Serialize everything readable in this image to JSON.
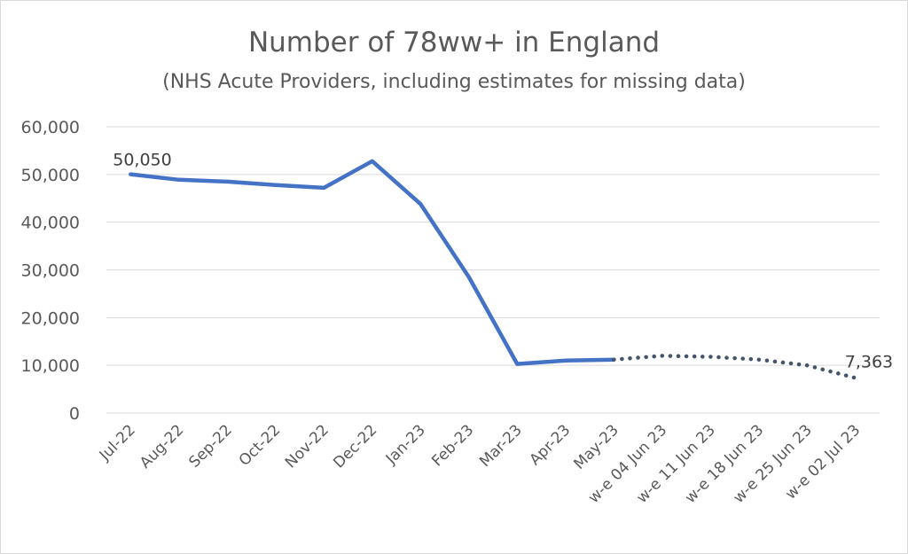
{
  "chart_data": {
    "type": "line",
    "title": "Number of 78ww+ in England",
    "subtitle": "(NHS Acute Providers, including estimates for missing data)",
    "xlabel": "",
    "ylabel": "",
    "ylim": [
      0,
      60000
    ],
    "yticks": [
      "60,000",
      "50,000",
      "40,000",
      "30,000",
      "20,000",
      "10,000",
      "0"
    ],
    "ytick_values": [
      60000,
      50000,
      40000,
      30000,
      20000,
      10000,
      0
    ],
    "grid": true,
    "legend": "none",
    "categories": [
      "Jul-22",
      "Aug-22",
      "Sep-22",
      "Oct-22",
      "Nov-22",
      "Dec-22",
      "Jan-23",
      "Feb-23",
      "Mar-23",
      "Apr-23",
      "May-23",
      "w-e 04 Jun 23",
      "w-e 11 Jun 23",
      "w-e 18 Jun 23",
      "w-e 25 Jun 23",
      "w-e 02 Jul 23"
    ],
    "series": [
      {
        "style": "solid",
        "color": "#4472C4",
        "values": [
          50050,
          48900,
          48500,
          47800,
          47200,
          52800,
          43800,
          28500,
          10300,
          11000,
          11200,
          null,
          null,
          null,
          null,
          null
        ]
      },
      {
        "style": "dotted",
        "color": "#44546A",
        "values": [
          null,
          null,
          null,
          null,
          null,
          null,
          null,
          null,
          null,
          null,
          11200,
          12000,
          11800,
          11200,
          10000,
          7363
        ]
      }
    ],
    "data_labels": [
      {
        "category": "Jul-22",
        "text": "50,050"
      },
      {
        "category": "w-e 02 Jul 23",
        "text": "7,363"
      }
    ]
  }
}
